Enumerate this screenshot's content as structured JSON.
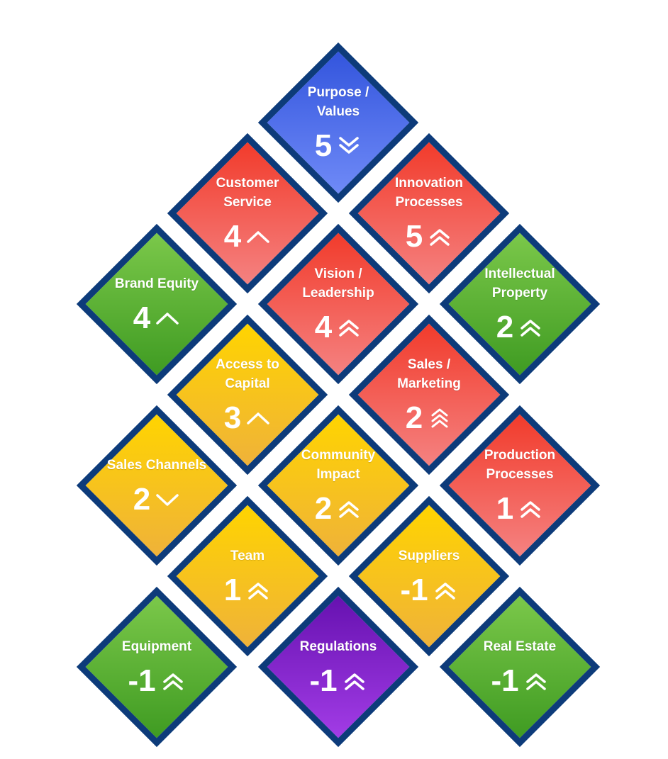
{
  "colors": {
    "border": "#0d3b7a",
    "blue": "#3355dd",
    "red": "#f23b2b",
    "green": "#5bb336",
    "yellow": "#ffd400",
    "purple": "#7a1fc4",
    "text": "#ffffff"
  },
  "tiles": [
    {
      "id": "purpose-values",
      "label": "Purpose / Values",
      "score": "5",
      "trend": "double-chevron-down-icon",
      "color": "blue"
    },
    {
      "id": "customer-service",
      "label": "Customer Service",
      "score": "4",
      "trend": "chevron-up-icon",
      "color": "red"
    },
    {
      "id": "innovation-processes",
      "label": "Innovation Processes",
      "score": "5",
      "trend": "double-chevron-up-icon",
      "color": "red"
    },
    {
      "id": "brand-equity",
      "label": "Brand Equity",
      "score": "4",
      "trend": "chevron-up-icon",
      "color": "green"
    },
    {
      "id": "vision-leadership",
      "label": "Vision / Leadership",
      "score": "4",
      "trend": "double-chevron-up-icon",
      "color": "red"
    },
    {
      "id": "intellectual-property",
      "label": "Intellectual Property",
      "score": "2",
      "trend": "double-chevron-up-icon",
      "color": "green"
    },
    {
      "id": "access-to-capital",
      "label": "Access to Capital",
      "score": "3",
      "trend": "chevron-up-icon",
      "color": "yellow"
    },
    {
      "id": "sales-marketing",
      "label": "Sales / Marketing",
      "score": "2",
      "trend": "triple-chevron-up-icon",
      "color": "red"
    },
    {
      "id": "sales-channels",
      "label": "Sales Channels",
      "score": "2",
      "trend": "chevron-down-icon",
      "color": "yellow"
    },
    {
      "id": "community-impact",
      "label": "Community Impact",
      "score": "2",
      "trend": "double-chevron-up-icon",
      "color": "yellow"
    },
    {
      "id": "production-processes",
      "label": "Production Processes",
      "score": "1",
      "trend": "double-chevron-up-icon",
      "color": "red"
    },
    {
      "id": "team",
      "label": "Team",
      "score": "1",
      "trend": "double-chevron-up-icon",
      "color": "yellow"
    },
    {
      "id": "suppliers",
      "label": "Suppliers",
      "score": "-1",
      "trend": "double-chevron-up-icon",
      "color": "yellow"
    },
    {
      "id": "equipment",
      "label": "Equipment",
      "score": "-1",
      "trend": "double-chevron-up-icon",
      "color": "green"
    },
    {
      "id": "regulations",
      "label": "Regulations",
      "score": "-1",
      "trend": "double-chevron-up-icon",
      "color": "purple"
    },
    {
      "id": "real-estate",
      "label": "Real Estate",
      "score": "-1",
      "trend": "double-chevron-up-icon",
      "color": "green"
    }
  ]
}
